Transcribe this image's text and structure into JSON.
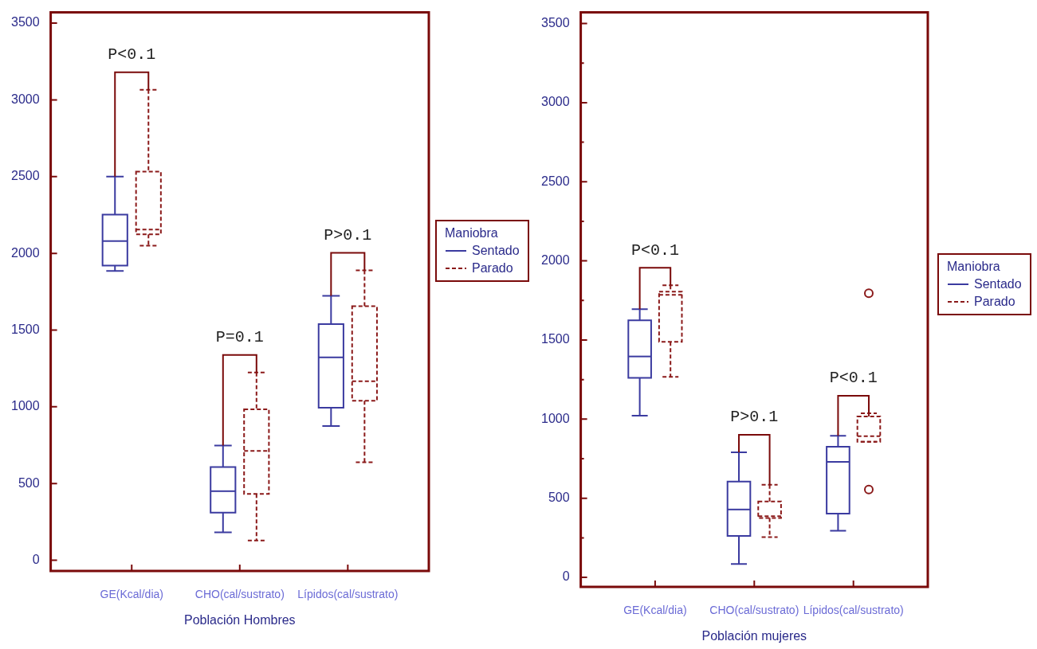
{
  "chart_data": [
    {
      "type": "box",
      "xlabel": "Población Hombres",
      "categories": [
        "GE(Kcal/dia)",
        "CHO(cal/sustrato)",
        "Lípidos(cal/sustrato)"
      ],
      "ylim": [
        -70,
        3570
      ],
      "yticks": [
        0,
        500,
        1000,
        1500,
        2000,
        2500,
        3000,
        3500
      ],
      "legend": "right",
      "legend_title": "Maniobra",
      "series": [
        {
          "name": "Sentado",
          "color": "#3b3ba0",
          "line_style": "solid",
          "boxes": [
            {
              "low": 1885,
              "q1": 1920,
              "median": 2080,
              "q3": 2253,
              "high": 2500
            },
            {
              "low": 182,
              "q1": 310,
              "median": 450,
              "q3": 607,
              "high": 748
            },
            {
              "low": 875,
              "q1": 994,
              "median": 1322,
              "q3": 1539,
              "high": 1723
            }
          ]
        },
        {
          "name": "Parado",
          "color": "#8b1a1a",
          "line_style": "dashed",
          "boxes": [
            {
              "low": 2050,
              "q1": 2124,
              "median": 2155,
              "q3": 2533,
              "high": 3066
            },
            {
              "low": 129,
              "q1": 432,
              "median": 712,
              "q3": 984,
              "high": 1223
            },
            {
              "low": 639,
              "q1": 1039,
              "median": 1167,
              "q3": 1655,
              "high": 1889
            }
          ]
        }
      ],
      "annotations": [
        "P<0.1",
        "P=0.1",
        "P>0.1"
      ]
    },
    {
      "type": "box",
      "xlabel": "Población mujeres",
      "categories": [
        "GE(Kcal/dia)",
        "CHO(cal/sustrato)",
        "Lípidos(cal/sustrato)"
      ],
      "ylim": [
        -60,
        3570
      ],
      "yticks": [
        0,
        {
          "value": 250,
          "label": null
        },
        500,
        {
          "value": 750,
          "label": null
        },
        1000,
        {
          "value": 1250,
          "label": null
        },
        1500,
        {
          "value": 1750,
          "label": null
        },
        2000,
        {
          "value": 2250,
          "label": null
        },
        2500,
        {
          "value": 2750,
          "label": null
        },
        3000,
        {
          "value": 3250,
          "label": null
        },
        3500
      ],
      "legend": "right",
      "legend_title": "Maniobra",
      "series": [
        {
          "name": "Sentado",
          "color": "#3b3ba0",
          "line_style": "solid",
          "boxes": [
            {
              "low": 1022,
              "q1": 1261,
              "median": 1396,
              "q3": 1624,
              "high": 1695
            },
            {
              "low": 85,
              "q1": 262,
              "median": 429,
              "q3": 605,
              "high": 791
            },
            {
              "low": 295,
              "q1": 403,
              "median": 730,
              "q3": 825,
              "high": 895
            }
          ]
        },
        {
          "name": "Parado",
          "color": "#8b1a1a",
          "line_style": "dashed",
          "boxes": [
            {
              "low": 1267,
              "q1": 1489,
              "median": 1785,
              "q3": 1805,
              "high": 1846
            },
            {
              "low": 254,
              "q1": 375,
              "median": 387,
              "q3": 480,
              "high": 585
            },
            {
              "low": 857,
              "q1": 857,
              "median": 892,
              "q3": 1017,
              "high": 1037,
              "outliers": [
                1795,
                555
              ]
            }
          ]
        }
      ],
      "annotations": [
        "P<0.1",
        "P>0.1",
        "P<0.1"
      ]
    }
  ]
}
